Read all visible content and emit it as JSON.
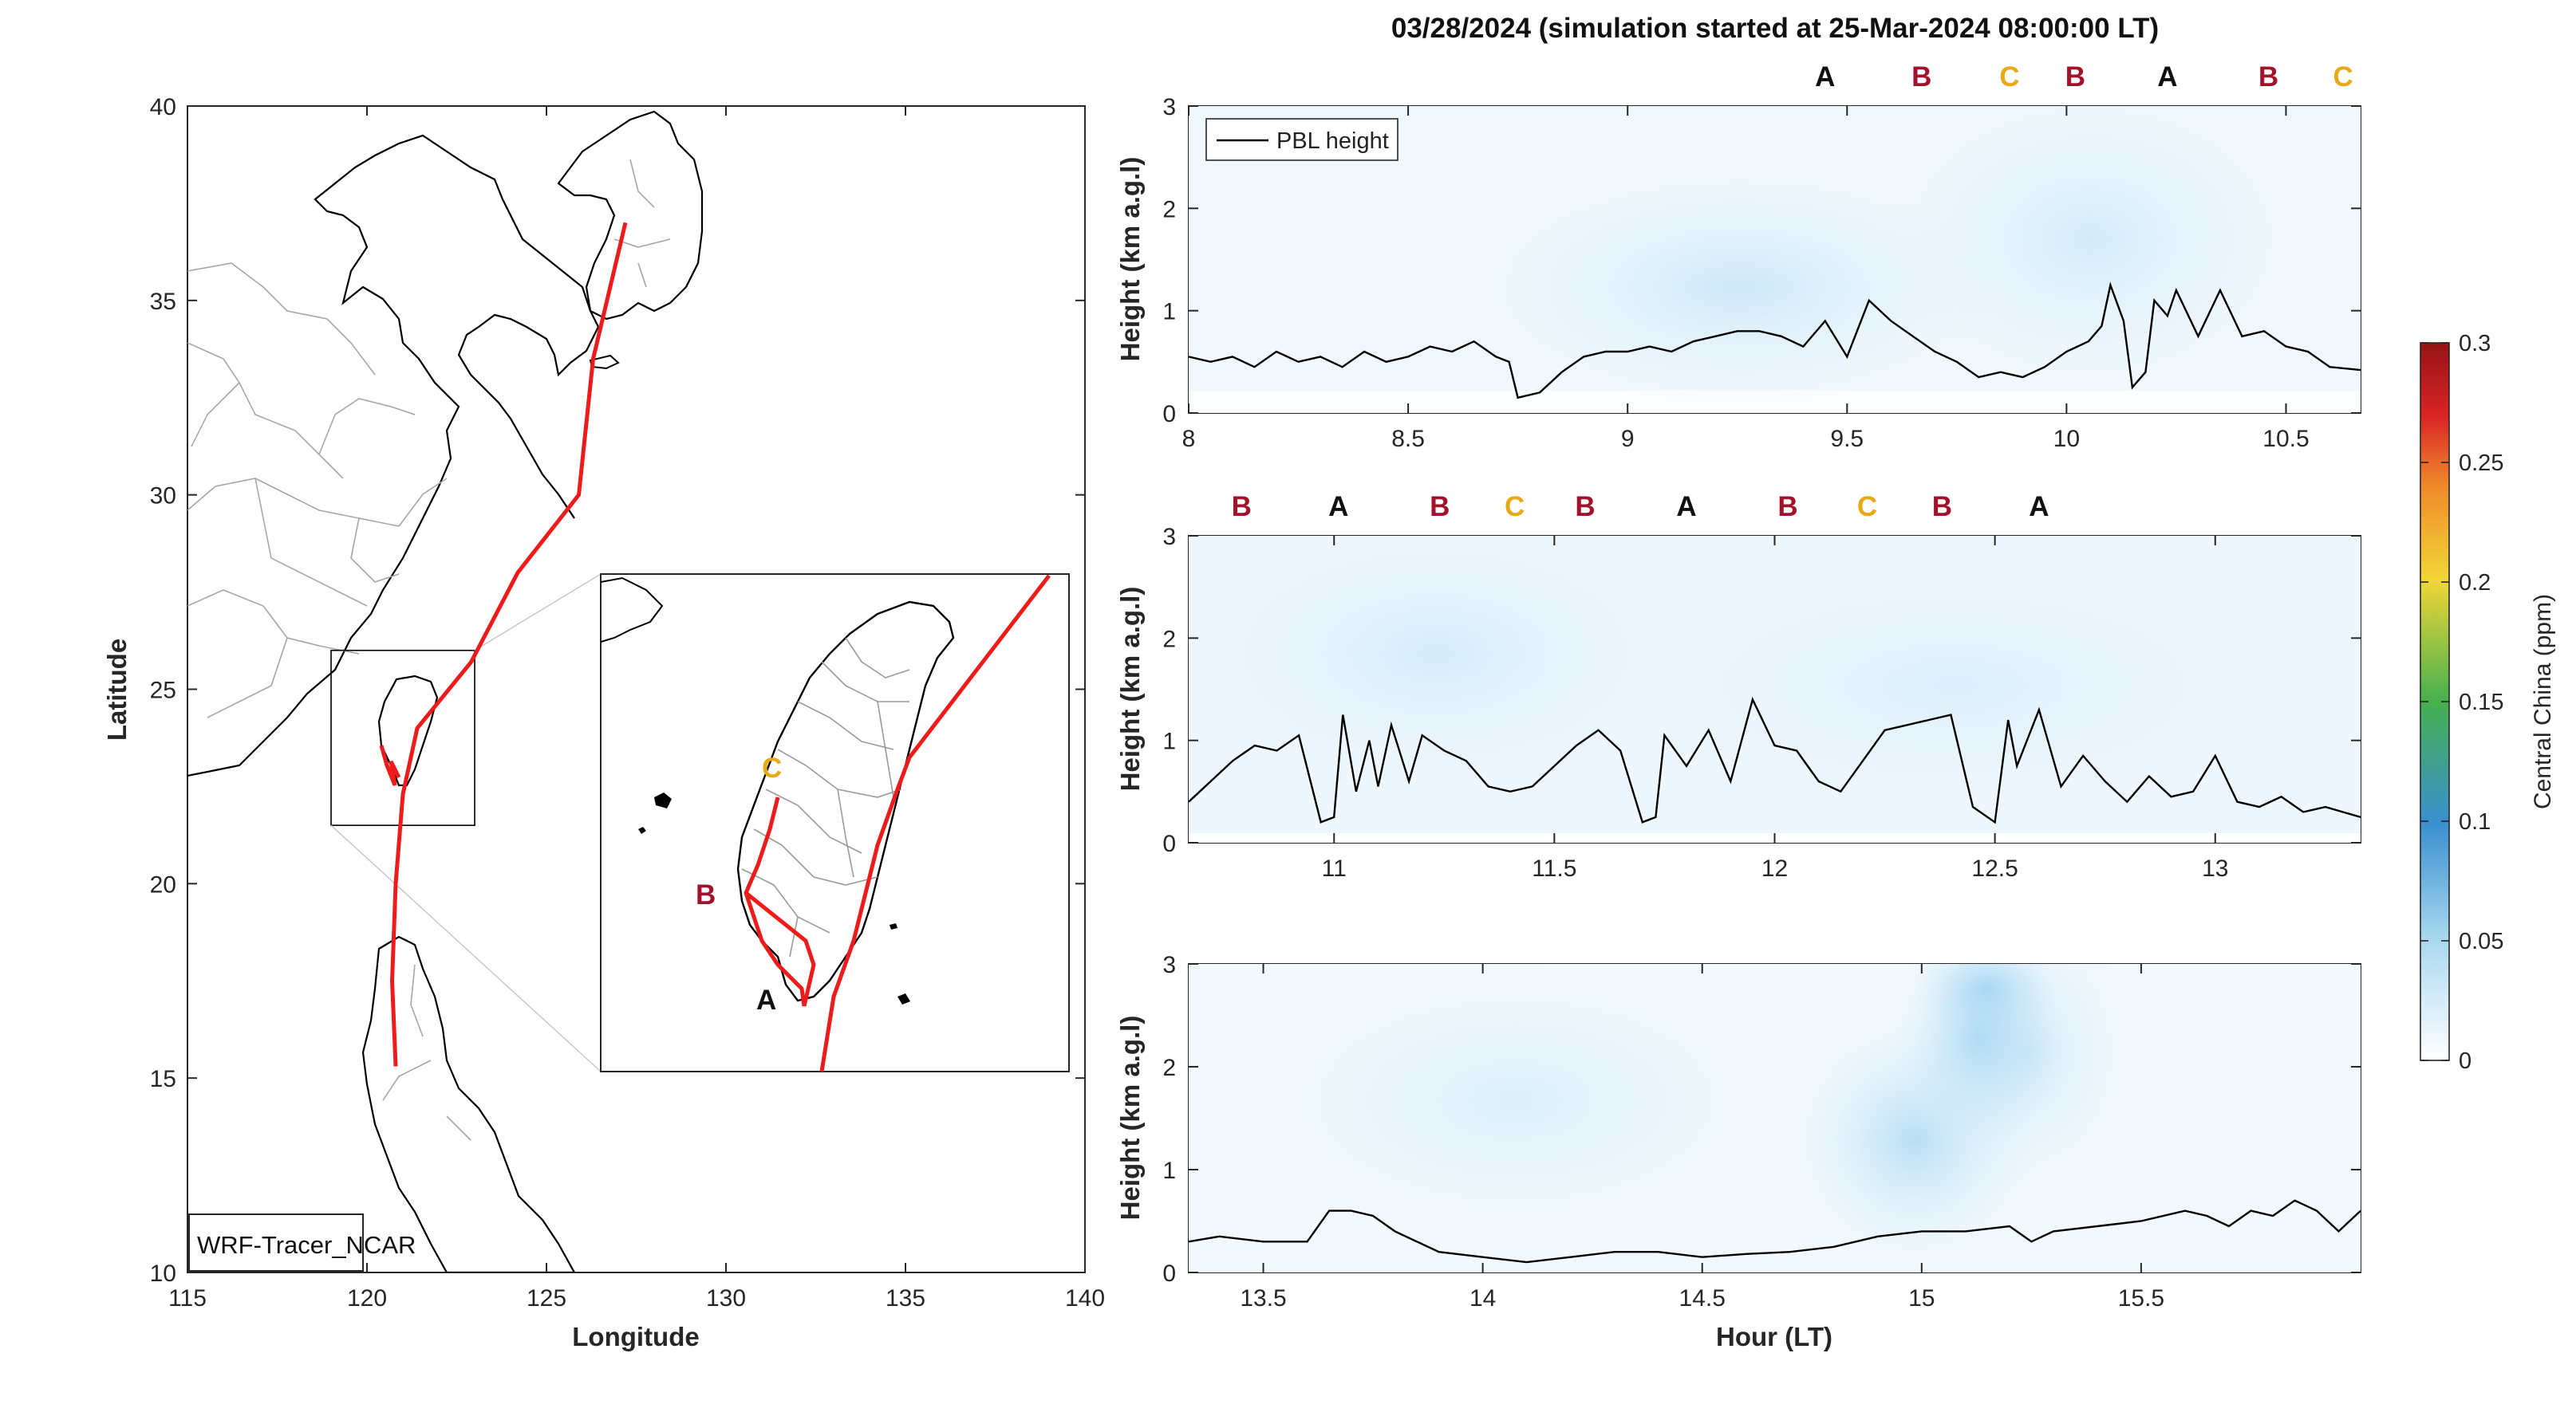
{
  "title": "03/28/2024 (simulation started at 25-Mar-2024 08:00:00 LT)",
  "colors": {
    "A": "#111111",
    "B": "#A3122B",
    "C": "#E8A917",
    "track": "#EE1B1B",
    "pbl": "#000000"
  },
  "chart_data": [
    {
      "type": "map",
      "xlabel": "Longitude",
      "ylabel": "Latitude",
      "xlim": [
        115,
        140
      ],
      "ylim": [
        10,
        40
      ],
      "xticks": [
        "115",
        "120",
        "125",
        "130",
        "135",
        "140"
      ],
      "yticks": [
        "10",
        "15",
        "20",
        "25",
        "30",
        "35",
        "40"
      ],
      "model_label": "WRF-Tracer_NCAR",
      "inset_box": {
        "lon": [
          119.0,
          123.0
        ],
        "lat": [
          21.5,
          26.0
        ]
      },
      "track": [
        [
          127.2,
          37.0
        ],
        [
          126.3,
          33.5
        ],
        [
          125.9,
          30.0
        ],
        [
          124.2,
          28.0
        ],
        [
          122.9,
          25.7
        ],
        [
          121.4,
          24.0
        ],
        [
          121.0,
          22.3
        ],
        [
          120.8,
          20.0
        ],
        [
          120.7,
          17.5
        ],
        [
          120.8,
          15.3
        ]
      ],
      "inset_markers": [
        {
          "label": "C",
          "color_key": "C",
          "lon": 120.66,
          "lat": 23.1
        },
        {
          "label": "B",
          "color_key": "B",
          "lon": 120.2,
          "lat": 22.9
        },
        {
          "label": "A",
          "color_key": "A",
          "lon": 120.8,
          "lat": 22.3
        }
      ]
    },
    {
      "type": "line",
      "ylabel": "Height (km a.g.l)",
      "xlabel": "",
      "xlim": [
        8.0,
        10.67
      ],
      "ylim": [
        0,
        3
      ],
      "xticks": [
        "8",
        "8.5",
        "9",
        "9.5",
        "10",
        "10.5"
      ],
      "yticks": [
        "0",
        "1",
        "2",
        "3"
      ],
      "legend": "PBL height",
      "series": [
        {
          "name": "PBL height",
          "x": [
            8.0,
            8.05,
            8.1,
            8.15,
            8.2,
            8.25,
            8.3,
            8.35,
            8.4,
            8.45,
            8.5,
            8.55,
            8.6,
            8.65,
            8.7,
            8.73,
            8.75,
            8.8,
            8.85,
            8.9,
            8.95,
            9.0,
            9.05,
            9.1,
            9.15,
            9.2,
            9.25,
            9.3,
            9.35,
            9.4,
            9.45,
            9.5,
            9.55,
            9.6,
            9.65,
            9.7,
            9.75,
            9.8,
            9.85,
            9.9,
            9.95,
            10.0,
            10.05,
            10.08,
            10.1,
            10.13,
            10.15,
            10.18,
            10.2,
            10.23,
            10.25,
            10.3,
            10.35,
            10.4,
            10.45,
            10.5,
            10.55,
            10.6,
            10.67
          ],
          "y": [
            0.55,
            0.5,
            0.55,
            0.45,
            0.6,
            0.5,
            0.55,
            0.45,
            0.6,
            0.5,
            0.55,
            0.65,
            0.6,
            0.7,
            0.55,
            0.5,
            0.15,
            0.2,
            0.4,
            0.55,
            0.6,
            0.6,
            0.65,
            0.6,
            0.7,
            0.75,
            0.8,
            0.8,
            0.75,
            0.65,
            0.9,
            0.55,
            1.1,
            0.9,
            0.75,
            0.6,
            0.5,
            0.35,
            0.4,
            0.35,
            0.45,
            0.6,
            0.7,
            0.85,
            1.25,
            0.9,
            0.25,
            0.4,
            1.1,
            0.95,
            1.2,
            0.75,
            1.2,
            0.75,
            0.8,
            0.65,
            0.6,
            0.45,
            0.42
          ]
        }
      ],
      "markers": [
        {
          "label": "A",
          "color_key": "A",
          "x": 9.45
        },
        {
          "label": "B",
          "color_key": "B",
          "x": 9.67
        },
        {
          "label": "C",
          "color_key": "C",
          "x": 9.87
        },
        {
          "label": "B",
          "color_key": "B",
          "x": 10.02
        },
        {
          "label": "A",
          "color_key": "A",
          "x": 10.23
        },
        {
          "label": "B",
          "color_key": "B",
          "x": 10.46
        },
        {
          "label": "C",
          "color_key": "C",
          "x": 10.63
        }
      ]
    },
    {
      "type": "line",
      "ylabel": "Height (km a.g.l)",
      "xlabel": "",
      "xlim": [
        10.67,
        13.33
      ],
      "ylim": [
        0,
        3
      ],
      "xticks": [
        "11",
        "11.5",
        "12",
        "12.5",
        "13"
      ],
      "yticks": [
        "0",
        "1",
        "2",
        "3"
      ],
      "series": [
        {
          "name": "PBL height",
          "x": [
            10.67,
            10.72,
            10.77,
            10.82,
            10.87,
            10.92,
            10.97,
            11.0,
            11.02,
            11.05,
            11.08,
            11.1,
            11.13,
            11.17,
            11.2,
            11.25,
            11.3,
            11.35,
            11.4,
            11.45,
            11.5,
            11.55,
            11.6,
            11.65,
            11.7,
            11.73,
            11.75,
            11.8,
            11.85,
            11.9,
            11.95,
            12.0,
            12.05,
            12.1,
            12.15,
            12.2,
            12.25,
            12.3,
            12.35,
            12.4,
            12.45,
            12.5,
            12.53,
            12.55,
            12.6,
            12.65,
            12.7,
            12.75,
            12.8,
            12.85,
            12.9,
            12.95,
            13.0,
            13.05,
            13.1,
            13.15,
            13.2,
            13.25,
            13.33
          ],
          "y": [
            0.4,
            0.6,
            0.8,
            0.95,
            0.9,
            1.05,
            0.2,
            0.25,
            1.25,
            0.5,
            1.0,
            0.55,
            1.15,
            0.6,
            1.05,
            0.9,
            0.8,
            0.55,
            0.5,
            0.55,
            0.75,
            0.95,
            1.1,
            0.9,
            0.2,
            0.25,
            1.05,
            0.75,
            1.1,
            0.6,
            1.4,
            0.95,
            0.9,
            0.6,
            0.5,
            0.8,
            1.1,
            1.15,
            1.2,
            1.25,
            0.35,
            0.2,
            1.2,
            0.75,
            1.3,
            0.55,
            0.85,
            0.6,
            0.4,
            0.65,
            0.45,
            0.5,
            0.85,
            0.4,
            0.35,
            0.45,
            0.3,
            0.35,
            0.25
          ]
        }
      ],
      "markers": [
        {
          "label": "B",
          "color_key": "B",
          "x": 10.79
        },
        {
          "label": "A",
          "color_key": "A",
          "x": 11.01
        },
        {
          "label": "B",
          "color_key": "B",
          "x": 11.24
        },
        {
          "label": "C",
          "color_key": "C",
          "x": 11.41
        },
        {
          "label": "B",
          "color_key": "B",
          "x": 11.57
        },
        {
          "label": "A",
          "color_key": "A",
          "x": 11.8
        },
        {
          "label": "B",
          "color_key": "B",
          "x": 12.03
        },
        {
          "label": "C",
          "color_key": "C",
          "x": 12.21
        },
        {
          "label": "B",
          "color_key": "B",
          "x": 12.38
        },
        {
          "label": "A",
          "color_key": "A",
          "x": 12.6
        }
      ]
    },
    {
      "type": "line",
      "ylabel": "Height (km a.g.l)",
      "xlabel": "Hour (LT)",
      "xlim": [
        13.33,
        16.0
      ],
      "ylim": [
        0,
        3
      ],
      "xticks": [
        "13.5",
        "14",
        "14.5",
        "15",
        "15.5"
      ],
      "yticks": [
        "0",
        "1",
        "2",
        "3"
      ],
      "series": [
        {
          "name": "PBL height",
          "x": [
            13.33,
            13.4,
            13.5,
            13.6,
            13.65,
            13.7,
            13.75,
            13.8,
            13.9,
            14.0,
            14.1,
            14.2,
            14.3,
            14.4,
            14.5,
            14.6,
            14.7,
            14.8,
            14.9,
            15.0,
            15.1,
            15.2,
            15.25,
            15.3,
            15.4,
            15.5,
            15.6,
            15.65,
            15.7,
            15.75,
            15.8,
            15.85,
            15.9,
            15.95,
            16.0
          ],
          "y": [
            0.3,
            0.35,
            0.3,
            0.3,
            0.6,
            0.6,
            0.55,
            0.4,
            0.2,
            0.15,
            0.1,
            0.15,
            0.2,
            0.2,
            0.15,
            0.18,
            0.2,
            0.25,
            0.35,
            0.4,
            0.4,
            0.45,
            0.3,
            0.4,
            0.45,
            0.5,
            0.6,
            0.55,
            0.45,
            0.6,
            0.55,
            0.7,
            0.6,
            0.4,
            0.6
          ]
        }
      ],
      "markers": []
    }
  ],
  "colorbar": {
    "label": "Central China (ppm)",
    "ticks": [
      "0",
      "0.05",
      "0.1",
      "0.15",
      "0.2",
      "0.25",
      "0.3"
    ],
    "range": [
      0,
      0.3
    ]
  }
}
